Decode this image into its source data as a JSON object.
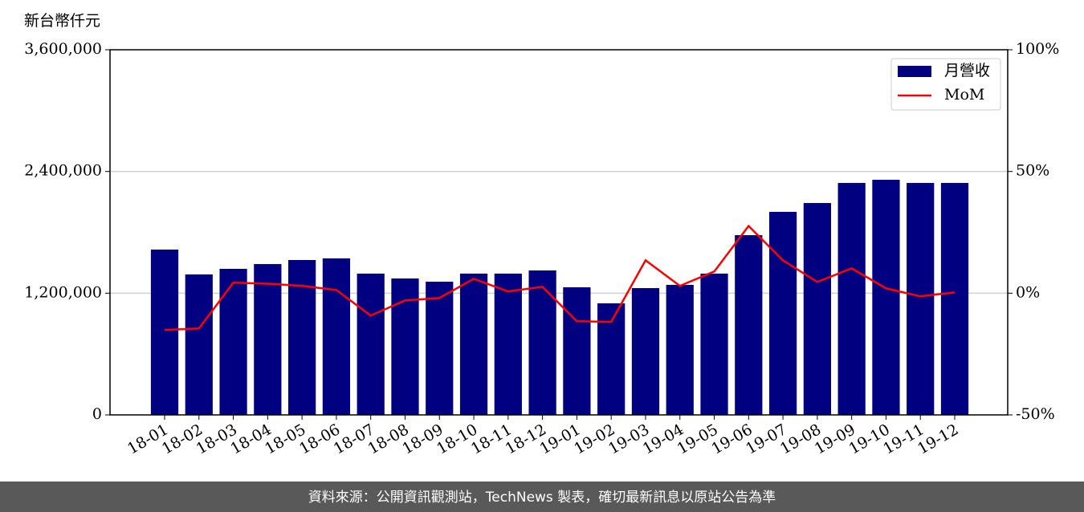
{
  "chart_data": {
    "type": "bar",
    "y_label": "新台幣仟元",
    "categories": [
      "18-01",
      "18-02",
      "18-03",
      "18-04",
      "18-05",
      "18-06",
      "18-07",
      "18-08",
      "18-09",
      "18-10",
      "18-11",
      "18-12",
      "19-01",
      "19-02",
      "19-03",
      "19-04",
      "19-05",
      "19-06",
      "19-07",
      "19-08",
      "19-09",
      "19-10",
      "19-11",
      "19-12"
    ],
    "series": [
      {
        "name": "月營收",
        "type": "bar",
        "color": "#000080",
        "values": [
          1630000,
          1385000,
          1440000,
          1487000,
          1527000,
          1543000,
          1393000,
          1345000,
          1313000,
          1393000,
          1393000,
          1424000,
          1258000,
          1100000,
          1250000,
          1282000,
          1393000,
          1772000,
          2002000,
          2089000,
          2287000,
          2318000,
          2287000,
          2287000
        ]
      },
      {
        "name": "MoM",
        "type": "line",
        "axis": "y2",
        "color": "#ff0000",
        "values": [
          -15.1,
          -14.5,
          4.3,
          3.9,
          3.0,
          1.3,
          -9.2,
          -3.0,
          -2.0,
          5.9,
          0.7,
          2.6,
          -11.5,
          -11.8,
          13.5,
          3.0,
          8.9,
          27.6,
          13.5,
          4.6,
          10.2,
          2.0,
          -1.3,
          0.3
        ]
      }
    ],
    "ylim": [
      0,
      3600000
    ],
    "yticks": [
      0,
      {
        "value": 1200000,
        "label": "1,200,000"
      },
      {
        "value": 2400000,
        "label": "2,400,000"
      },
      {
        "value": 3600000,
        "label": "3,600,000"
      }
    ],
    "y2lim": [
      -50,
      100
    ],
    "y2ticks": [
      {
        "value": -50,
        "label": "-50%"
      },
      {
        "value": 0,
        "label": "0%"
      },
      {
        "value": 50,
        "label": "50%"
      },
      {
        "value": 100,
        "label": "100%"
      }
    ],
    "grid": true,
    "legend": "upper right"
  },
  "footer": "資料來源：公開資訊觀測站，TechNews 製表，確切最新訊息以原站公告為準"
}
